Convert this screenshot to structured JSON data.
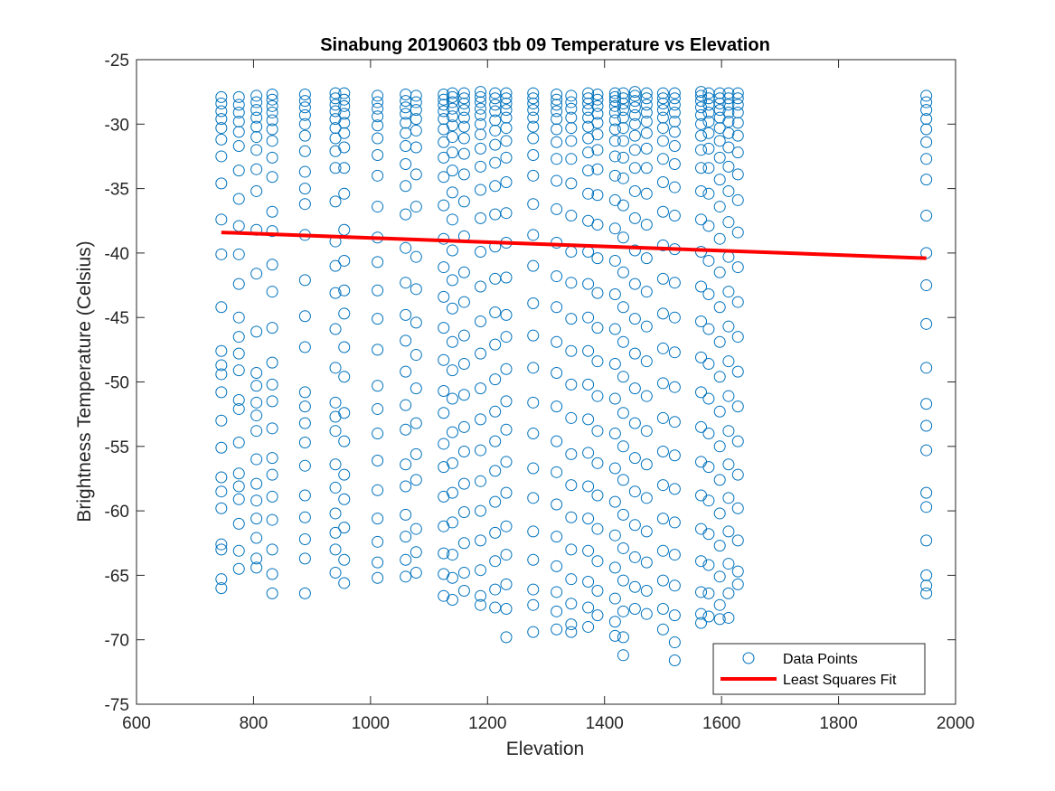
{
  "chart_data": {
    "type": "scatter",
    "title": "Sinabung 20190603 tbb 09 Temperature vs Elevation",
    "xlabel": "Elevation",
    "ylabel": "Brightness Temperature (Celsius)",
    "xlim": [
      600,
      2000
    ],
    "ylim": [
      -75,
      -25
    ],
    "xticks": [
      600,
      800,
      1000,
      1200,
      1400,
      1600,
      1800,
      2000
    ],
    "yticks": [
      -25,
      -30,
      -35,
      -40,
      -45,
      -50,
      -55,
      -60,
      -65,
      -70,
      -75
    ],
    "grid": false,
    "legend_position": "bottom-right",
    "colors": {
      "points": "#0072BD",
      "fit": "#FF0000",
      "axes": "#262626"
    },
    "series": [
      {
        "name": "Data Points",
        "marker": "open-circle",
        "columns": [
          {
            "x": 745,
            "y": [
              -27.9,
              -28.4,
              -29.0,
              -29.6,
              -30.3,
              -31.2,
              -32.5,
              -34.6,
              -37.4,
              -40.1,
              -44.2,
              -47.6,
              -48.7,
              -49.4,
              -50.8,
              -53.0,
              -55.1,
              -57.4,
              -58.5,
              -59.8,
              -62.6,
              -63.0,
              -65.3,
              -66.0
            ]
          },
          {
            "x": 775,
            "y": [
              -27.9,
              -28.5,
              -29.1,
              -29.8,
              -30.6,
              -31.7,
              -33.6,
              -35.8,
              -37.9,
              -40.1,
              -42.4,
              -45.0,
              -46.5,
              -47.8,
              -49.1,
              -51.4,
              -52.1,
              -54.7,
              -57.1,
              -58.1,
              -59.1,
              -61.0,
              -63.1,
              -64.5
            ]
          },
          {
            "x": 805,
            "y": [
              -27.8,
              -28.3,
              -28.9,
              -29.5,
              -30.2,
              -31.0,
              -32.0,
              -33.5,
              -35.2,
              -38.2,
              -41.6,
              -46.1,
              -49.3,
              -50.3,
              -51.6,
              -52.6,
              -53.8,
              -56.0,
              -57.9,
              -59.2,
              -60.6,
              -62.1,
              -63.7,
              -64.4
            ]
          },
          {
            "x": 832,
            "y": [
              -27.7,
              -28.1,
              -28.6,
              -29.1,
              -29.7,
              -30.4,
              -31.3,
              -32.6,
              -34.1,
              -36.8,
              -38.3,
              -40.9,
              -43.0,
              -45.8,
              -48.5,
              -50.2,
              -51.5,
              -53.6,
              -55.9,
              -57.2,
              -58.9,
              -60.7,
              -63.0,
              -64.9,
              -66.4
            ]
          },
          {
            "x": 888,
            "y": [
              -27.7,
              -28.2,
              -28.7,
              -29.3,
              -30.0,
              -30.9,
              -32.1,
              -33.7,
              -35.0,
              -36.2,
              -38.6,
              -42.1,
              -44.9,
              -47.3,
              -50.8,
              -51.9,
              -53.2,
              -54.7,
              -56.5,
              -58.8,
              -60.5,
              -62.2,
              -63.7,
              -66.4
            ]
          },
          {
            "x": 940,
            "y": [
              -27.6,
              -28.0,
              -28.5,
              -29.0,
              -29.6,
              -30.3,
              -31.1,
              -32.1,
              -33.4,
              -36.0,
              -39.1,
              -41.0,
              -43.1,
              -45.9,
              -48.9,
              -51.6,
              -52.7,
              -53.8,
              -56.4,
              -58.2,
              -60.2,
              -61.7,
              -63.0,
              -64.8
            ]
          },
          {
            "x": 955,
            "y": [
              -27.6,
              -28.1,
              -28.6,
              -29.2,
              -29.9,
              -30.7,
              -31.8,
              -33.4,
              -35.4,
              -38.2,
              -40.6,
              -42.9,
              -44.7,
              -47.3,
              -49.6,
              -52.4,
              -54.6,
              -57.2,
              -59.1,
              -61.3,
              -63.8,
              -65.6
            ]
          },
          {
            "x": 1012,
            "y": [
              -27.8,
              -28.3,
              -28.8,
              -29.4,
              -30.1,
              -31.1,
              -32.4,
              -34.0,
              -36.4,
              -38.8,
              -40.7,
              -42.9,
              -45.1,
              -47.5,
              -50.3,
              -52.1,
              -54.0,
              -56.1,
              -58.4,
              -60.6,
              -62.4,
              -64.0,
              -65.2
            ]
          },
          {
            "x": 1060,
            "y": [
              -27.7,
              -28.2,
              -28.7,
              -29.2,
              -29.9,
              -30.7,
              -31.7,
              -33.1,
              -34.8,
              -37.0,
              -39.6,
              -42.3,
              -44.8,
              -46.8,
              -49.2,
              -51.8,
              -53.7,
              -56.4,
              -58.1,
              -60.3,
              -62.0,
              -63.8,
              -65.1
            ]
          },
          {
            "x": 1078,
            "y": [
              -27.8,
              -28.3,
              -28.9,
              -29.6,
              -30.5,
              -31.8,
              -33.9,
              -36.4,
              -40.3,
              -42.8,
              -45.4,
              -47.9,
              -50.5,
              -53.2,
              -55.6,
              -57.6,
              -61.4,
              -63.2,
              -64.8
            ]
          },
          {
            "x": 1125,
            "y": [
              -27.7,
              -28.1,
              -28.5,
              -29.0,
              -29.6,
              -30.4,
              -31.4,
              -32.6,
              -34.1,
              -36.3,
              -38.9,
              -41.1,
              -43.4,
              -45.8,
              -48.3,
              -50.7,
              -52.4,
              -54.8,
              -56.6,
              -58.9,
              -61.2,
              -63.3,
              -64.9,
              -66.6
            ]
          },
          {
            "x": 1140,
            "y": [
              -27.6,
              -27.9,
              -28.3,
              -28.8,
              -29.4,
              -30.1,
              -31.0,
              -32.2,
              -33.6,
              -35.3,
              -37.4,
              -39.8,
              -42.1,
              -44.3,
              -46.9,
              -49.1,
              -51.3,
              -53.9,
              -56.3,
              -58.6,
              -60.9,
              -63.4,
              -65.2,
              -66.9
            ]
          },
          {
            "x": 1160,
            "y": [
              -27.6,
              -28.0,
              -28.4,
              -28.9,
              -29.5,
              -30.2,
              -31.1,
              -32.3,
              -33.9,
              -36.0,
              -38.7,
              -41.5,
              -43.8,
              -46.4,
              -48.6,
              -51.0,
              -53.5,
              -55.4,
              -57.9,
              -60.1,
              -62.5,
              -64.8,
              -66.2
            ]
          },
          {
            "x": 1188,
            "y": [
              -27.5,
              -27.9,
              -28.3,
              -28.8,
              -29.3,
              -30.0,
              -30.8,
              -31.9,
              -33.3,
              -35.1,
              -37.3,
              -39.9,
              -42.6,
              -45.3,
              -47.8,
              -50.5,
              -52.9,
              -55.3,
              -57.7,
              -60.0,
              -62.3,
              -64.6,
              -66.6,
              -67.3
            ]
          },
          {
            "x": 1213,
            "y": [
              -27.6,
              -28.0,
              -28.5,
              -29.0,
              -29.7,
              -30.5,
              -31.6,
              -33.0,
              -34.8,
              -37.0,
              -39.5,
              -42.0,
              -44.6,
              -47.1,
              -49.8,
              -52.3,
              -54.6,
              -56.9,
              -59.3,
              -61.7,
              -63.9,
              -66.1,
              -67.5
            ]
          },
          {
            "x": 1232,
            "y": [
              -27.6,
              -28.0,
              -28.4,
              -28.9,
              -29.5,
              -30.3,
              -31.3,
              -32.6,
              -34.5,
              -36.9,
              -39.2,
              -41.9,
              -44.8,
              -46.5,
              -49.0,
              -51.5,
              -53.7,
              -56.2,
              -58.6,
              -61.2,
              -63.4,
              -65.7,
              -67.6,
              -69.8
            ]
          },
          {
            "x": 1278,
            "y": [
              -27.6,
              -28.0,
              -28.4,
              -28.9,
              -29.5,
              -30.2,
              -31.1,
              -32.4,
              -34.0,
              -36.2,
              -38.6,
              -41.0,
              -43.9,
              -46.4,
              -48.9,
              -51.6,
              -54.0,
              -56.7,
              -59.0,
              -61.6,
              -63.8,
              -66.1,
              -67.3,
              -69.4
            ]
          },
          {
            "x": 1318,
            "y": [
              -27.7,
              -28.1,
              -28.5,
              -29.0,
              -29.6,
              -30.4,
              -31.4,
              -32.7,
              -34.4,
              -36.6,
              -39.2,
              -41.8,
              -44.2,
              -46.9,
              -49.3,
              -51.9,
              -54.6,
              -57.0,
              -59.5,
              -62.0,
              -64.3,
              -66.3,
              -67.8,
              -69.2
            ]
          },
          {
            "x": 1343,
            "y": [
              -27.8,
              -28.3,
              -28.8,
              -29.5,
              -30.3,
              -31.3,
              -32.7,
              -34.6,
              -37.1,
              -39.9,
              -42.3,
              -45.1,
              -47.6,
              -50.2,
              -52.8,
              -55.6,
              -58.0,
              -60.5,
              -63.0,
              -65.3,
              -67.2,
              -68.8,
              -69.4
            ]
          },
          {
            "x": 1372,
            "y": [
              -27.6,
              -28.0,
              -28.4,
              -28.9,
              -29.5,
              -30.2,
              -31.1,
              -32.2,
              -33.6,
              -35.4,
              -37.5,
              -39.9,
              -42.4,
              -45.0,
              -47.6,
              -50.2,
              -52.9,
              -55.5,
              -58.1,
              -60.6,
              -63.1,
              -65.5,
              -67.5,
              -69.0
            ]
          },
          {
            "x": 1388,
            "y": [
              -27.7,
              -28.1,
              -28.6,
              -29.2,
              -29.9,
              -30.8,
              -32.0,
              -33.5,
              -35.5,
              -37.8,
              -40.4,
              -43.1,
              -45.8,
              -48.4,
              -51.1,
              -53.8,
              -56.3,
              -58.8,
              -61.4,
              -63.9,
              -66.2,
              -68.1
            ]
          },
          {
            "x": 1418,
            "y": [
              -27.6,
              -27.9,
              -28.2,
              -28.6,
              -29.1,
              -29.7,
              -30.4,
              -31.3,
              -32.5,
              -34.0,
              -35.9,
              -38.1,
              -40.6,
              -43.2,
              -45.9,
              -48.6,
              -51.3,
              -54.0,
              -56.7,
              -59.3,
              -61.9,
              -64.4,
              -66.8,
              -68.6,
              -69.7
            ]
          },
          {
            "x": 1432,
            "y": [
              -27.6,
              -28.0,
              -28.4,
              -28.9,
              -29.5,
              -30.3,
              -31.3,
              -32.6,
              -34.2,
              -36.3,
              -38.8,
              -41.5,
              -44.2,
              -46.9,
              -49.6,
              -52.4,
              -55.0,
              -57.6,
              -60.3,
              -62.9,
              -65.4,
              -67.8,
              -69.8,
              -71.2
            ]
          },
          {
            "x": 1452,
            "y": [
              -27.5,
              -27.8,
              -28.2,
              -28.7,
              -29.3,
              -30.0,
              -30.9,
              -32.0,
              -33.4,
              -35.2,
              -37.3,
              -39.8,
              -42.4,
              -45.1,
              -47.8,
              -50.5,
              -53.2,
              -55.9,
              -58.5,
              -61.1,
              -63.6,
              -65.9,
              -67.6
            ]
          },
          {
            "x": 1472,
            "y": [
              -27.6,
              -28.0,
              -28.5,
              -29.1,
              -29.8,
              -30.7,
              -31.9,
              -33.4,
              -35.4,
              -37.8,
              -40.4,
              -43.0,
              -45.7,
              -48.4,
              -51.1,
              -53.8,
              -56.4,
              -59.0,
              -61.6,
              -64.0,
              -66.2,
              -68.0
            ]
          },
          {
            "x": 1500,
            "y": [
              -27.6,
              -28.0,
              -28.4,
              -28.9,
              -29.5,
              -30.3,
              -31.3,
              -32.7,
              -34.5,
              -36.8,
              -39.4,
              -42.0,
              -44.7,
              -47.4,
              -50.1,
              -52.8,
              -55.4,
              -58.0,
              -60.6,
              -63.1,
              -65.4,
              -67.6,
              -69.2
            ]
          },
          {
            "x": 1520,
            "y": [
              -27.6,
              -28.0,
              -28.5,
              -29.1,
              -29.8,
              -30.6,
              -31.7,
              -33.1,
              -34.9,
              -37.1,
              -39.7,
              -42.3,
              -45.0,
              -47.7,
              -50.4,
              -53.1,
              -55.7,
              -58.3,
              -60.9,
              -63.4,
              -65.8,
              -68.1,
              -70.2,
              -71.6
            ]
          },
          {
            "x": 1565,
            "y": [
              -27.5,
              -27.8,
              -28.2,
              -28.7,
              -29.3,
              -30.0,
              -30.9,
              -32.0,
              -33.4,
              -35.2,
              -37.4,
              -39.9,
              -42.6,
              -45.3,
              -48.1,
              -50.8,
              -53.5,
              -56.2,
              -58.8,
              -61.4,
              -63.9,
              -66.3,
              -68.0,
              -68.7
            ]
          },
          {
            "x": 1578,
            "y": [
              -27.6,
              -28.0,
              -28.5,
              -29.1,
              -29.8,
              -30.7,
              -31.9,
              -33.4,
              -35.4,
              -37.9,
              -40.6,
              -43.2,
              -45.9,
              -48.6,
              -51.3,
              -54.0,
              -56.6,
              -59.2,
              -61.8,
              -64.2,
              -66.4,
              -68.2
            ]
          },
          {
            "x": 1597,
            "y": [
              -27.6,
              -28.0,
              -28.4,
              -28.9,
              -29.5,
              -30.3,
              -31.3,
              -32.6,
              -34.3,
              -36.4,
              -38.9,
              -41.5,
              -44.2,
              -46.9,
              -49.6,
              -52.3,
              -55.0,
              -57.6,
              -60.2,
              -62.7,
              -65.1,
              -67.3,
              -68.4
            ]
          },
          {
            "x": 1612,
            "y": [
              -27.6,
              -28.0,
              -28.5,
              -29.1,
              -29.8,
              -30.7,
              -31.8,
              -33.3,
              -35.2,
              -37.6,
              -40.3,
              -43.0,
              -45.7,
              -48.4,
              -51.1,
              -53.8,
              -56.4,
              -59.0,
              -61.6,
              -64.1,
              -66.4,
              -68.3
            ]
          },
          {
            "x": 1628,
            "y": [
              -27.6,
              -28.0,
              -28.5,
              -29.1,
              -29.9,
              -30.9,
              -32.2,
              -33.9,
              -35.9,
              -38.4,
              -41.1,
              -43.8,
              -46.5,
              -49.2,
              -51.9,
              -54.6,
              -57.2,
              -59.8,
              -62.3,
              -64.7,
              -65.7
            ]
          },
          {
            "x": 1950,
            "y": [
              -27.8,
              -28.3,
              -28.9,
              -29.6,
              -30.4,
              -31.4,
              -32.7,
              -34.3,
              -37.1,
              -40.0,
              -42.5,
              -45.5,
              -48.9,
              -51.7,
              -53.4,
              -55.3,
              -58.6,
              -59.7,
              -62.3,
              -65.0,
              -65.8,
              -66.4
            ]
          }
        ]
      },
      {
        "name": "Least Squares Fit",
        "type": "line",
        "x": [
          745,
          1950
        ],
        "y": [
          -38.4,
          -40.4
        ]
      }
    ]
  }
}
